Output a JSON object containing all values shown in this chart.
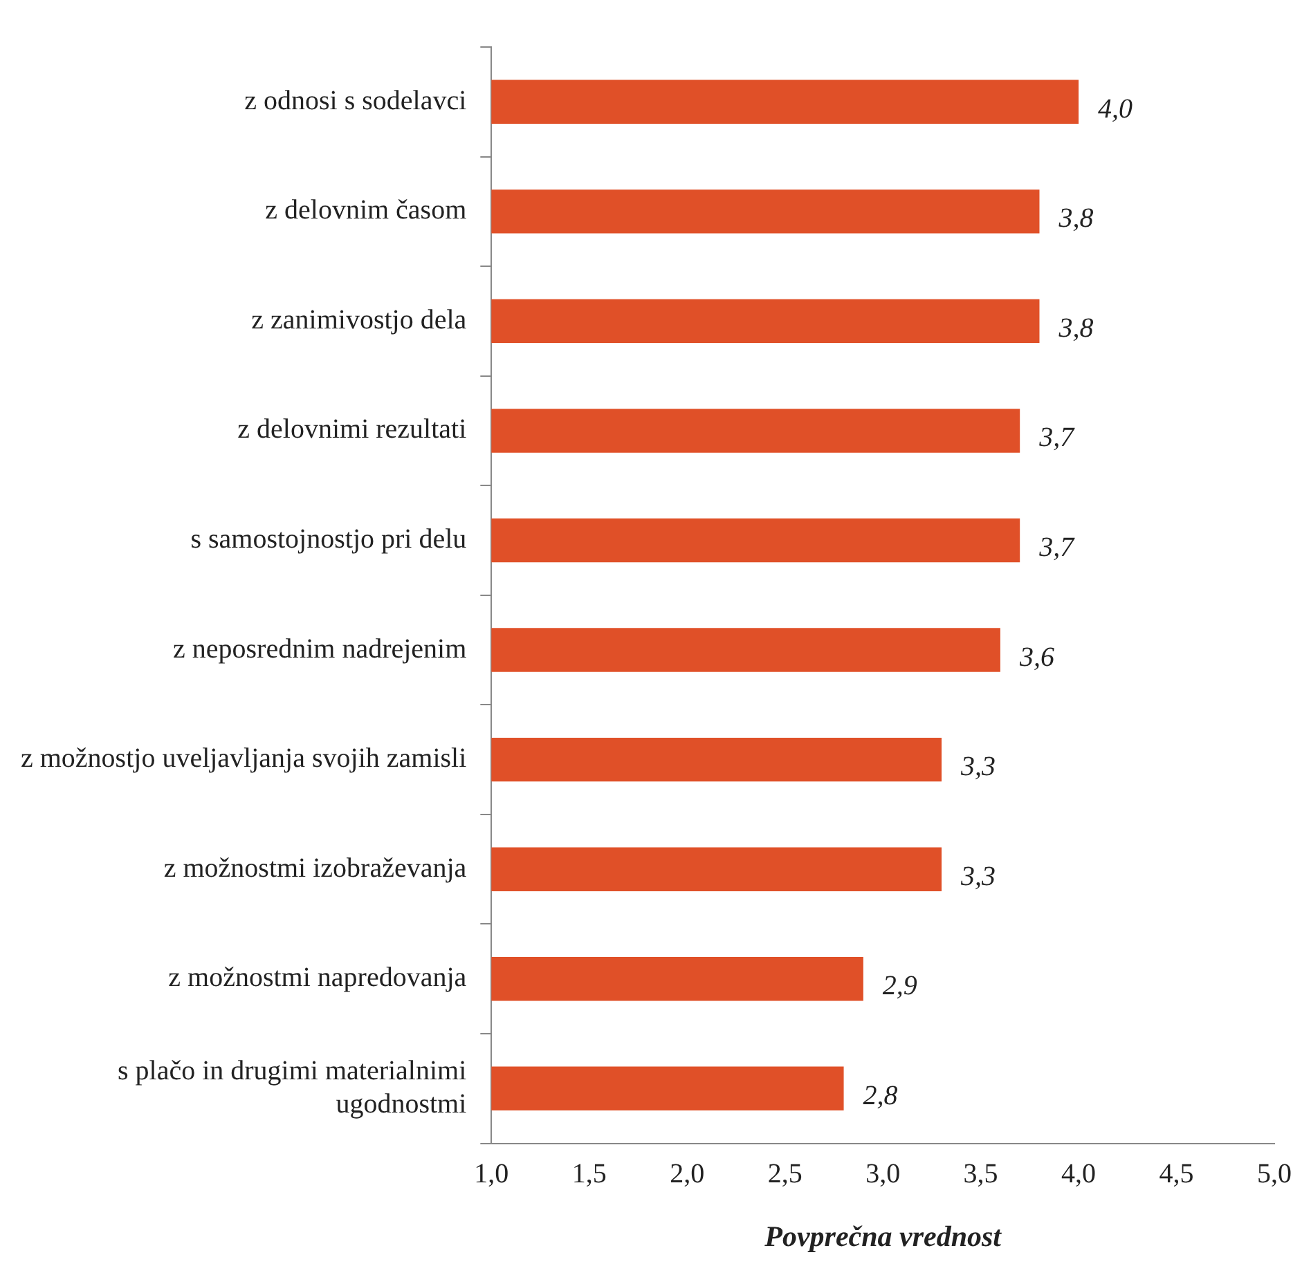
{
  "chart_data": {
    "type": "bar",
    "orientation": "horizontal",
    "xlabel": "Povprečna vrednost",
    "categories": [
      "z odnosi s sodelavci",
      "z delovnim časom",
      "z zanimivostjo dela",
      "z delovnimi rezultati",
      "s samostojnostjo pri delu",
      "z neposrednim nadrejenim",
      "z možnostjo uveljavljanja svojih zamisli",
      "z možnostmi izobraževanja",
      "z možnostmi napredovanja",
      "s plačo in drugimi materialnimi\nugodnostmi"
    ],
    "values": [
      4.0,
      3.8,
      3.8,
      3.7,
      3.7,
      3.6,
      3.3,
      3.3,
      2.9,
      2.8
    ],
    "value_labels": [
      "4,0",
      "3,8",
      "3,8",
      "3,7",
      "3,7",
      "3,6",
      "3,3",
      "3,3",
      "2,9",
      "2,8"
    ],
    "color": "#e05028",
    "xlim": [
      1,
      5
    ],
    "xticks": [
      {
        "value": 1,
        "label": "1,0"
      },
      {
        "value": 1.5,
        "label": "1,5"
      },
      {
        "value": 2,
        "label": "2,0"
      },
      {
        "value": 2.5,
        "label": "2,5"
      },
      {
        "value": 3,
        "label": "3,0"
      },
      {
        "value": 3.5,
        "label": "3,5"
      },
      {
        "value": 4,
        "label": "4,0"
      },
      {
        "value": 4.5,
        "label": "4,5"
      },
      {
        "value": 5,
        "label": "5,0"
      }
    ],
    "grid": false,
    "legend": false
  }
}
